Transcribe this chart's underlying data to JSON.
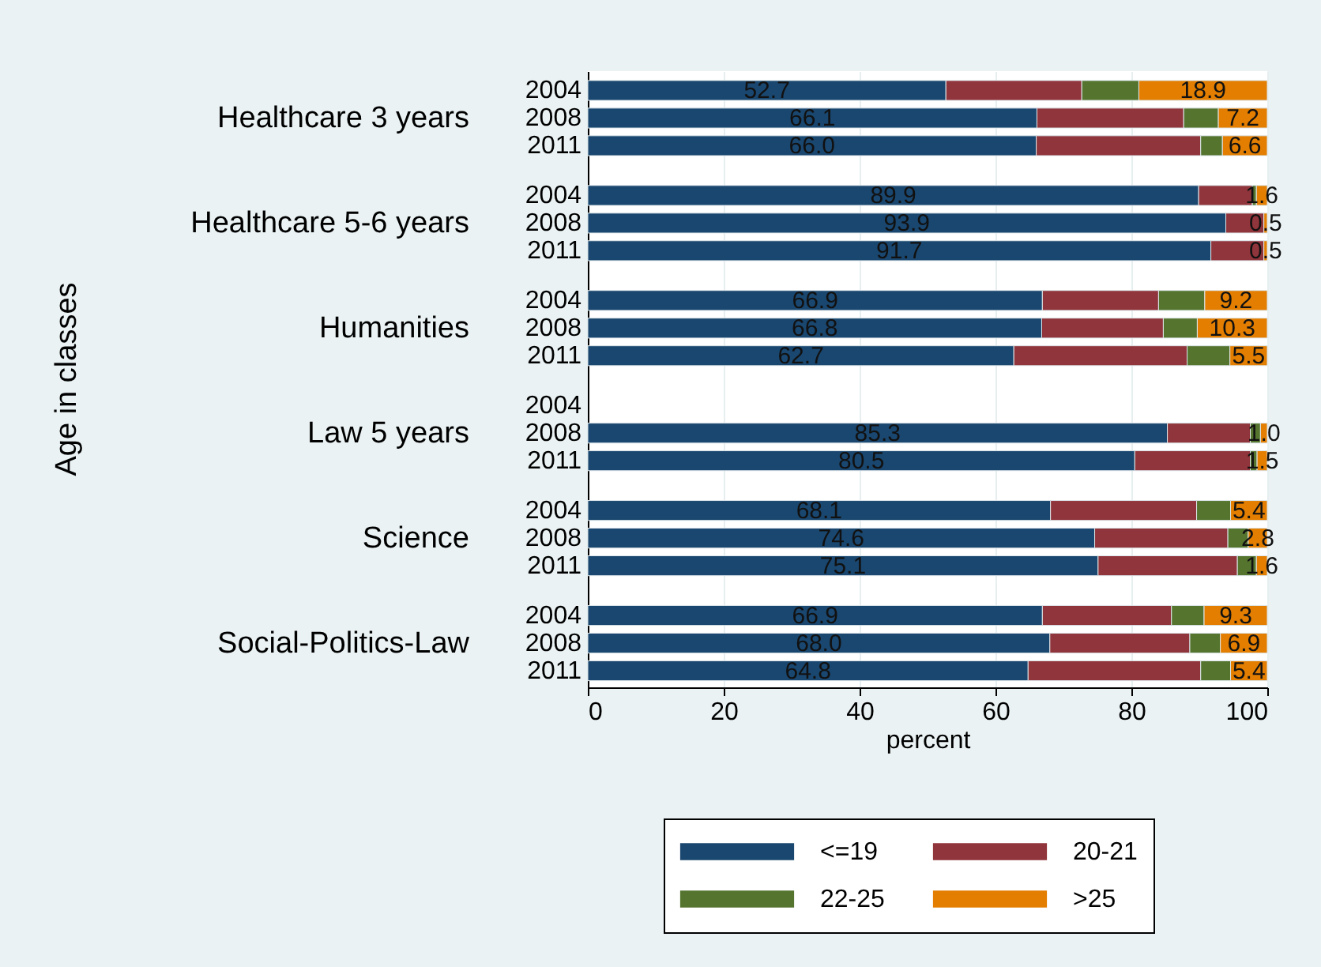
{
  "chart_data": {
    "type": "bar",
    "orientation": "horizontal",
    "stacked": true,
    "categories": [
      "2004",
      "2008",
      "2011",
      "2004",
      "2008",
      "2011",
      "2004",
      "2008",
      "2011",
      "2004",
      "2008",
      "2011",
      "2004",
      "2008",
      "2011",
      "2004",
      "2008",
      "2011"
    ],
    "annotations": [
      "Healthcare 3 years",
      "Healthcare 5-6 years",
      "Humanities",
      "Law 5 years",
      "Science",
      "Social-Politics-Law",
      "Age in classes"
    ],
    "xlabel": "percent",
    "xlim": [
      0,
      100
    ],
    "xticks": [
      0,
      20,
      40,
      60,
      80,
      100
    ],
    "grid": "x",
    "legend": "bottom",
    "series": [
      {
        "name": "<=19",
        "color": "#1a476f",
        "values": [
          52.7,
          66.1,
          66.0,
          89.9,
          93.9,
          91.7,
          66.9,
          66.8,
          62.7,
          null,
          85.3,
          80.5,
          68.1,
          74.6,
          75.1,
          66.9,
          68.0,
          64.8
        ],
        "value_labels": [
          "52.7",
          "66.1",
          "66.0",
          "89.9",
          "93.9",
          "91.7",
          "66.9",
          "66.8",
          "62.7",
          null,
          "85.3",
          "80.5",
          "68.1",
          "74.6",
          "75.1",
          "66.9",
          "68.0",
          "64.8"
        ]
      },
      {
        "name": "20-21",
        "color": "#90353b",
        "values": [
          20.0,
          21.6,
          24.2,
          7.9,
          5.6,
          7.8,
          17.1,
          17.9,
          25.5,
          null,
          12.2,
          17.0,
          21.5,
          19.6,
          20.5,
          19.0,
          20.6,
          25.4
        ]
      },
      {
        "name": "22-25",
        "color": "#55752f",
        "values": [
          8.4,
          5.1,
          3.2,
          0.6,
          0.0,
          0.0,
          6.8,
          5.0,
          6.3,
          null,
          1.5,
          1.0,
          5.0,
          3.0,
          2.8,
          4.8,
          4.5,
          4.4
        ]
      },
      {
        "name": ">25",
        "color": "#e37e00",
        "values": [
          18.9,
          7.2,
          6.6,
          1.6,
          0.5,
          0.5,
          9.2,
          10.3,
          5.5,
          null,
          1.0,
          1.5,
          5.4,
          2.8,
          1.6,
          9.3,
          6.9,
          5.4
        ],
        "value_labels": [
          "18.9",
          "7.2",
          "6.6",
          "1.6",
          "0.5",
          "0.5",
          "9.2",
          "10.3",
          "5.5",
          null,
          "1.0",
          "1.5",
          "5.4",
          "2.8",
          "1.6",
          "9.3",
          "6.9",
          "5.4"
        ]
      }
    ]
  }
}
